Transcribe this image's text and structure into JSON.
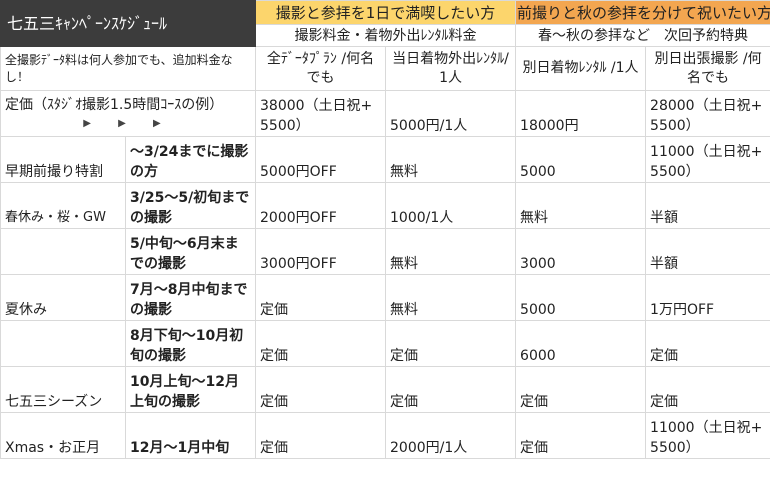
{
  "title": "七五三ｷｬﾝﾍﾟｰﾝｽｹｼﾞｭｰﾙ",
  "plans": [
    {
      "label": "撮影と参拝を1日で満喫したい方",
      "color": "#fcd56c"
    },
    {
      "label": "前撮りと秋の参拝を分けて祝いたい方",
      "color": "#f3a650"
    }
  ],
  "subheaders": [
    "撮影料金・着物外出ﾚﾝﾀﾙ料金",
    "春〜秋の参拝など　次回予約特典"
  ],
  "note": "全撮影ﾃﾞｰﾀ料は何人参加でも、追加料金なし！",
  "columns": [
    "全ﾃﾞｰﾀﾌﾟﾗﾝ /何名でも",
    "当日着物外出ﾚﾝﾀﾙ/1人",
    "別日着物ﾚﾝﾀﾙ /1人",
    "別日出張撮影 /何名でも"
  ],
  "base_price": {
    "label": "定価（ｽﾀｼﾞｵ撮影1.5時間ｺｰｽの例）",
    "arrows": "▶ ▶ ▶",
    "values": [
      "38000（土日祝+5500）",
      "5000円/1人",
      "18000円",
      "28000（土日祝+5500）"
    ]
  },
  "rows": [
    {
      "category": "早期前撮り特割",
      "period": "〜3/24までに撮影の方",
      "values": [
        "5000円OFF",
        "無料",
        "5000",
        "11000（土日祝+5500）"
      ]
    },
    {
      "category": "春休み・桜・GW",
      "period": "3/25〜5/初旬までの撮影",
      "values": [
        "2000円OFF",
        "1000/1人",
        "無料",
        "半額"
      ]
    },
    {
      "category": "",
      "period": "5/中旬〜6月末までの撮影",
      "values": [
        "3000円OFF",
        "無料",
        "3000",
        "半額"
      ]
    },
    {
      "category": "夏休み",
      "period": "7月〜8月中旬までの撮影",
      "values": [
        "定価",
        "無料",
        "5000",
        "1万円OFF"
      ]
    },
    {
      "category": "",
      "period": "8月下旬〜10月初旬の撮影",
      "values": [
        "定価",
        "定価",
        "6000",
        "定価"
      ]
    },
    {
      "category": "七五三シーズン",
      "period": "10月上旬〜12月上旬の撮影",
      "values": [
        "定価",
        "定価",
        "定価",
        "定価"
      ]
    },
    {
      "category": "Xmas・お正月",
      "period": "12月〜1月中旬",
      "values": [
        "定価",
        "2000円/1人",
        "定価",
        "11000（土日祝+5500）"
      ]
    }
  ]
}
